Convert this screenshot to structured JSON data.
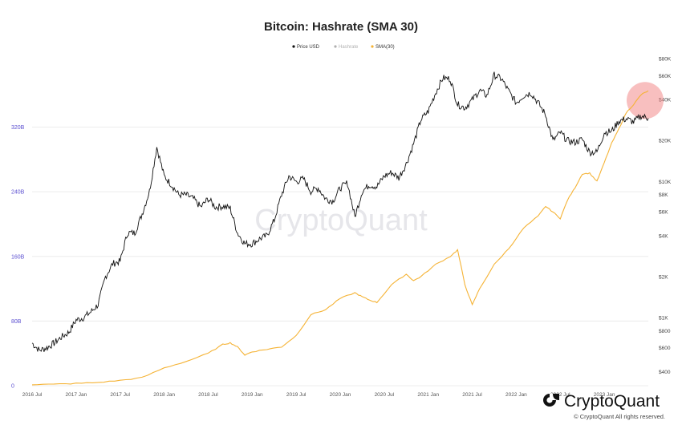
{
  "chart_data": {
    "type": "line",
    "title": "Bitcoin: Hashrate (SMA 30)",
    "legend": {
      "placement": "top-center",
      "entries": [
        {
          "label": "Price USD",
          "color": "#111111"
        },
        {
          "label": "Hashrate",
          "color": "#b0b0b0"
        },
        {
          "label": "SMA(30)",
          "color": "#f5b335"
        }
      ]
    },
    "left_axis": {
      "ticks": [
        {
          "label": "0",
          "value": 0
        },
        {
          "label": "80B",
          "value": 80
        },
        {
          "label": "160B",
          "value": 160
        },
        {
          "label": "240B",
          "value": 240
        },
        {
          "label": "320B",
          "value": 320
        }
      ],
      "range": [
        0,
        390
      ]
    },
    "right_axis": {
      "scale": "log",
      "ticks": [
        {
          "label": "$80K",
          "value": 80000
        },
        {
          "label": "$60K",
          "value": 60000
        },
        {
          "label": "$40K",
          "value": 40000
        },
        {
          "label": "$20K",
          "value": 20000
        },
        {
          "label": "$10K",
          "value": 10000
        },
        {
          "label": "$8K",
          "value": 8000
        },
        {
          "label": "$6K",
          "value": 6000
        },
        {
          "label": "$4K",
          "value": 4000
        },
        {
          "label": "$2K",
          "value": 2000
        },
        {
          "label": "$1K",
          "value": 1000
        },
        {
          "label": "$800",
          "value": 800
        },
        {
          "label": "$600",
          "value": 600
        },
        {
          "label": "$400",
          "value": 400
        }
      ]
    },
    "x_ticks": [
      "2016 Jul",
      "2017 Jan",
      "2017 Jul",
      "2018 Jan",
      "2018 Jul",
      "2019 Jan",
      "2019 Jul",
      "2020 Jan",
      "2020 Jul",
      "2021 Jan",
      "2021 Jul",
      "2022 Jan",
      "2022 Jul",
      "2023 Jan"
    ],
    "grid": true,
    "series": [
      {
        "name": "Price USD",
        "axis": "right",
        "color": "#111111",
        "points": [
          [
            "2016-07",
            650
          ],
          [
            "2016-08",
            575
          ],
          [
            "2016-09",
            600
          ],
          [
            "2016-10",
            650
          ],
          [
            "2016-11",
            720
          ],
          [
            "2016-12",
            780
          ],
          [
            "2017-01",
            960
          ],
          [
            "2017-02",
            1000
          ],
          [
            "2017-03",
            1100
          ],
          [
            "2017-04",
            1250
          ],
          [
            "2017-05",
            2000
          ],
          [
            "2017-06",
            2500
          ],
          [
            "2017-07",
            2600
          ],
          [
            "2017-08",
            4200
          ],
          [
            "2017-09",
            4200
          ],
          [
            "2017-10",
            5800
          ],
          [
            "2017-11",
            8500
          ],
          [
            "2017-12",
            18000
          ],
          [
            "2018-01",
            11000
          ],
          [
            "2018-02",
            9500
          ],
          [
            "2018-03",
            8000
          ],
          [
            "2018-04",
            8000
          ],
          [
            "2018-05",
            7500
          ],
          [
            "2018-06",
            6500
          ],
          [
            "2018-07",
            7500
          ],
          [
            "2018-08",
            6500
          ],
          [
            "2018-09",
            6600
          ],
          [
            "2018-10",
            6400
          ],
          [
            "2018-11",
            4200
          ],
          [
            "2018-12",
            3500
          ],
          [
            "2019-01",
            3500
          ],
          [
            "2019-02",
            3800
          ],
          [
            "2019-03",
            4000
          ],
          [
            "2019-04",
            5200
          ],
          [
            "2019-05",
            8000
          ],
          [
            "2019-06",
            11000
          ],
          [
            "2019-07",
            10000
          ],
          [
            "2019-08",
            10500
          ],
          [
            "2019-09",
            8500
          ],
          [
            "2019-10",
            9000
          ],
          [
            "2019-11",
            7500
          ],
          [
            "2019-12",
            7200
          ],
          [
            "2020-01",
            9000
          ],
          [
            "2020-02",
            9800
          ],
          [
            "2020-03",
            5500
          ],
          [
            "2020-04",
            8500
          ],
          [
            "2020-05",
            9500
          ],
          [
            "2020-06",
            9200
          ],
          [
            "2020-07",
            11000
          ],
          [
            "2020-08",
            11700
          ],
          [
            "2020-09",
            10700
          ],
          [
            "2020-10",
            13500
          ],
          [
            "2020-11",
            19000
          ],
          [
            "2020-12",
            28500
          ],
          [
            "2021-01",
            33000
          ],
          [
            "2021-02",
            45000
          ],
          [
            "2021-03",
            58000
          ],
          [
            "2021-04",
            57000
          ],
          [
            "2021-05",
            37000
          ],
          [
            "2021-06",
            35000
          ],
          [
            "2021-07",
            40000
          ],
          [
            "2021-08",
            47000
          ],
          [
            "2021-09",
            43000
          ],
          [
            "2021-10",
            61000
          ],
          [
            "2021-11",
            57000
          ],
          [
            "2021-12",
            46000
          ],
          [
            "2022-01",
            38000
          ],
          [
            "2022-02",
            43000
          ],
          [
            "2022-03",
            45000
          ],
          [
            "2022-04",
            38000
          ],
          [
            "2022-05",
            31000
          ],
          [
            "2022-06",
            20000
          ],
          [
            "2022-07",
            23000
          ],
          [
            "2022-08",
            20000
          ],
          [
            "2022-09",
            19500
          ],
          [
            "2022-10",
            20500
          ],
          [
            "2022-11",
            16500
          ],
          [
            "2022-12",
            16500
          ],
          [
            "2023-01",
            23000
          ],
          [
            "2023-02",
            23500
          ],
          [
            "2023-03",
            28000
          ],
          [
            "2023-04",
            29000
          ],
          [
            "2023-05",
            27500
          ],
          [
            "2023-06",
            30500
          ],
          [
            "2023-07",
            29300
          ]
        ]
      },
      {
        "name": "SMA(30)",
        "axis": "left",
        "color": "#f5b335",
        "points": [
          [
            "2016-07",
            1.5
          ],
          [
            "2016-10",
            1.8
          ],
          [
            "2017-01",
            2.8
          ],
          [
            "2017-04",
            4
          ],
          [
            "2017-07",
            6.5
          ],
          [
            "2017-10",
            10
          ],
          [
            "2018-01",
            22
          ],
          [
            "2018-04",
            30
          ],
          [
            "2018-07",
            40
          ],
          [
            "2018-09",
            51
          ],
          [
            "2018-10",
            53
          ],
          [
            "2018-11",
            48
          ],
          [
            "2018-12",
            38
          ],
          [
            "2019-01",
            42
          ],
          [
            "2019-03",
            45
          ],
          [
            "2019-05",
            48
          ],
          [
            "2019-07",
            62
          ],
          [
            "2019-09",
            88
          ],
          [
            "2019-11",
            94
          ],
          [
            "2020-01",
            108
          ],
          [
            "2020-03",
            115
          ],
          [
            "2020-04",
            110
          ],
          [
            "2020-05",
            106
          ],
          [
            "2020-06",
            103
          ],
          [
            "2020-08",
            125
          ],
          [
            "2020-10",
            138
          ],
          [
            "2020-11",
            130
          ],
          [
            "2020-12",
            135
          ],
          [
            "2021-02",
            150
          ],
          [
            "2021-04",
            160
          ],
          [
            "2021-05",
            168
          ],
          [
            "2021-06",
            125
          ],
          [
            "2021-07",
            100
          ],
          [
            "2021-08",
            120
          ],
          [
            "2021-10",
            150
          ],
          [
            "2021-12",
            170
          ],
          [
            "2022-02",
            195
          ],
          [
            "2022-04",
            210
          ],
          [
            "2022-05",
            222
          ],
          [
            "2022-06",
            215
          ],
          [
            "2022-07",
            207
          ],
          [
            "2022-08",
            230
          ],
          [
            "2022-09",
            245
          ],
          [
            "2022-10",
            262
          ],
          [
            "2022-11",
            263
          ],
          [
            "2022-12",
            253
          ],
          [
            "2023-01",
            276
          ],
          [
            "2023-02",
            300
          ],
          [
            "2023-03",
            318
          ],
          [
            "2023-04",
            338
          ],
          [
            "2023-05",
            348
          ],
          [
            "2023-06",
            360
          ],
          [
            "2023-07",
            365
          ]
        ]
      }
    ],
    "annotations": [
      {
        "type": "highlight-circle",
        "color": "#f28a8a",
        "near": "2023-07"
      }
    ]
  },
  "watermark": "CryptoQuant",
  "brand": "CryptoQuant",
  "copyright": "© CryptoQuant All rights reserved."
}
